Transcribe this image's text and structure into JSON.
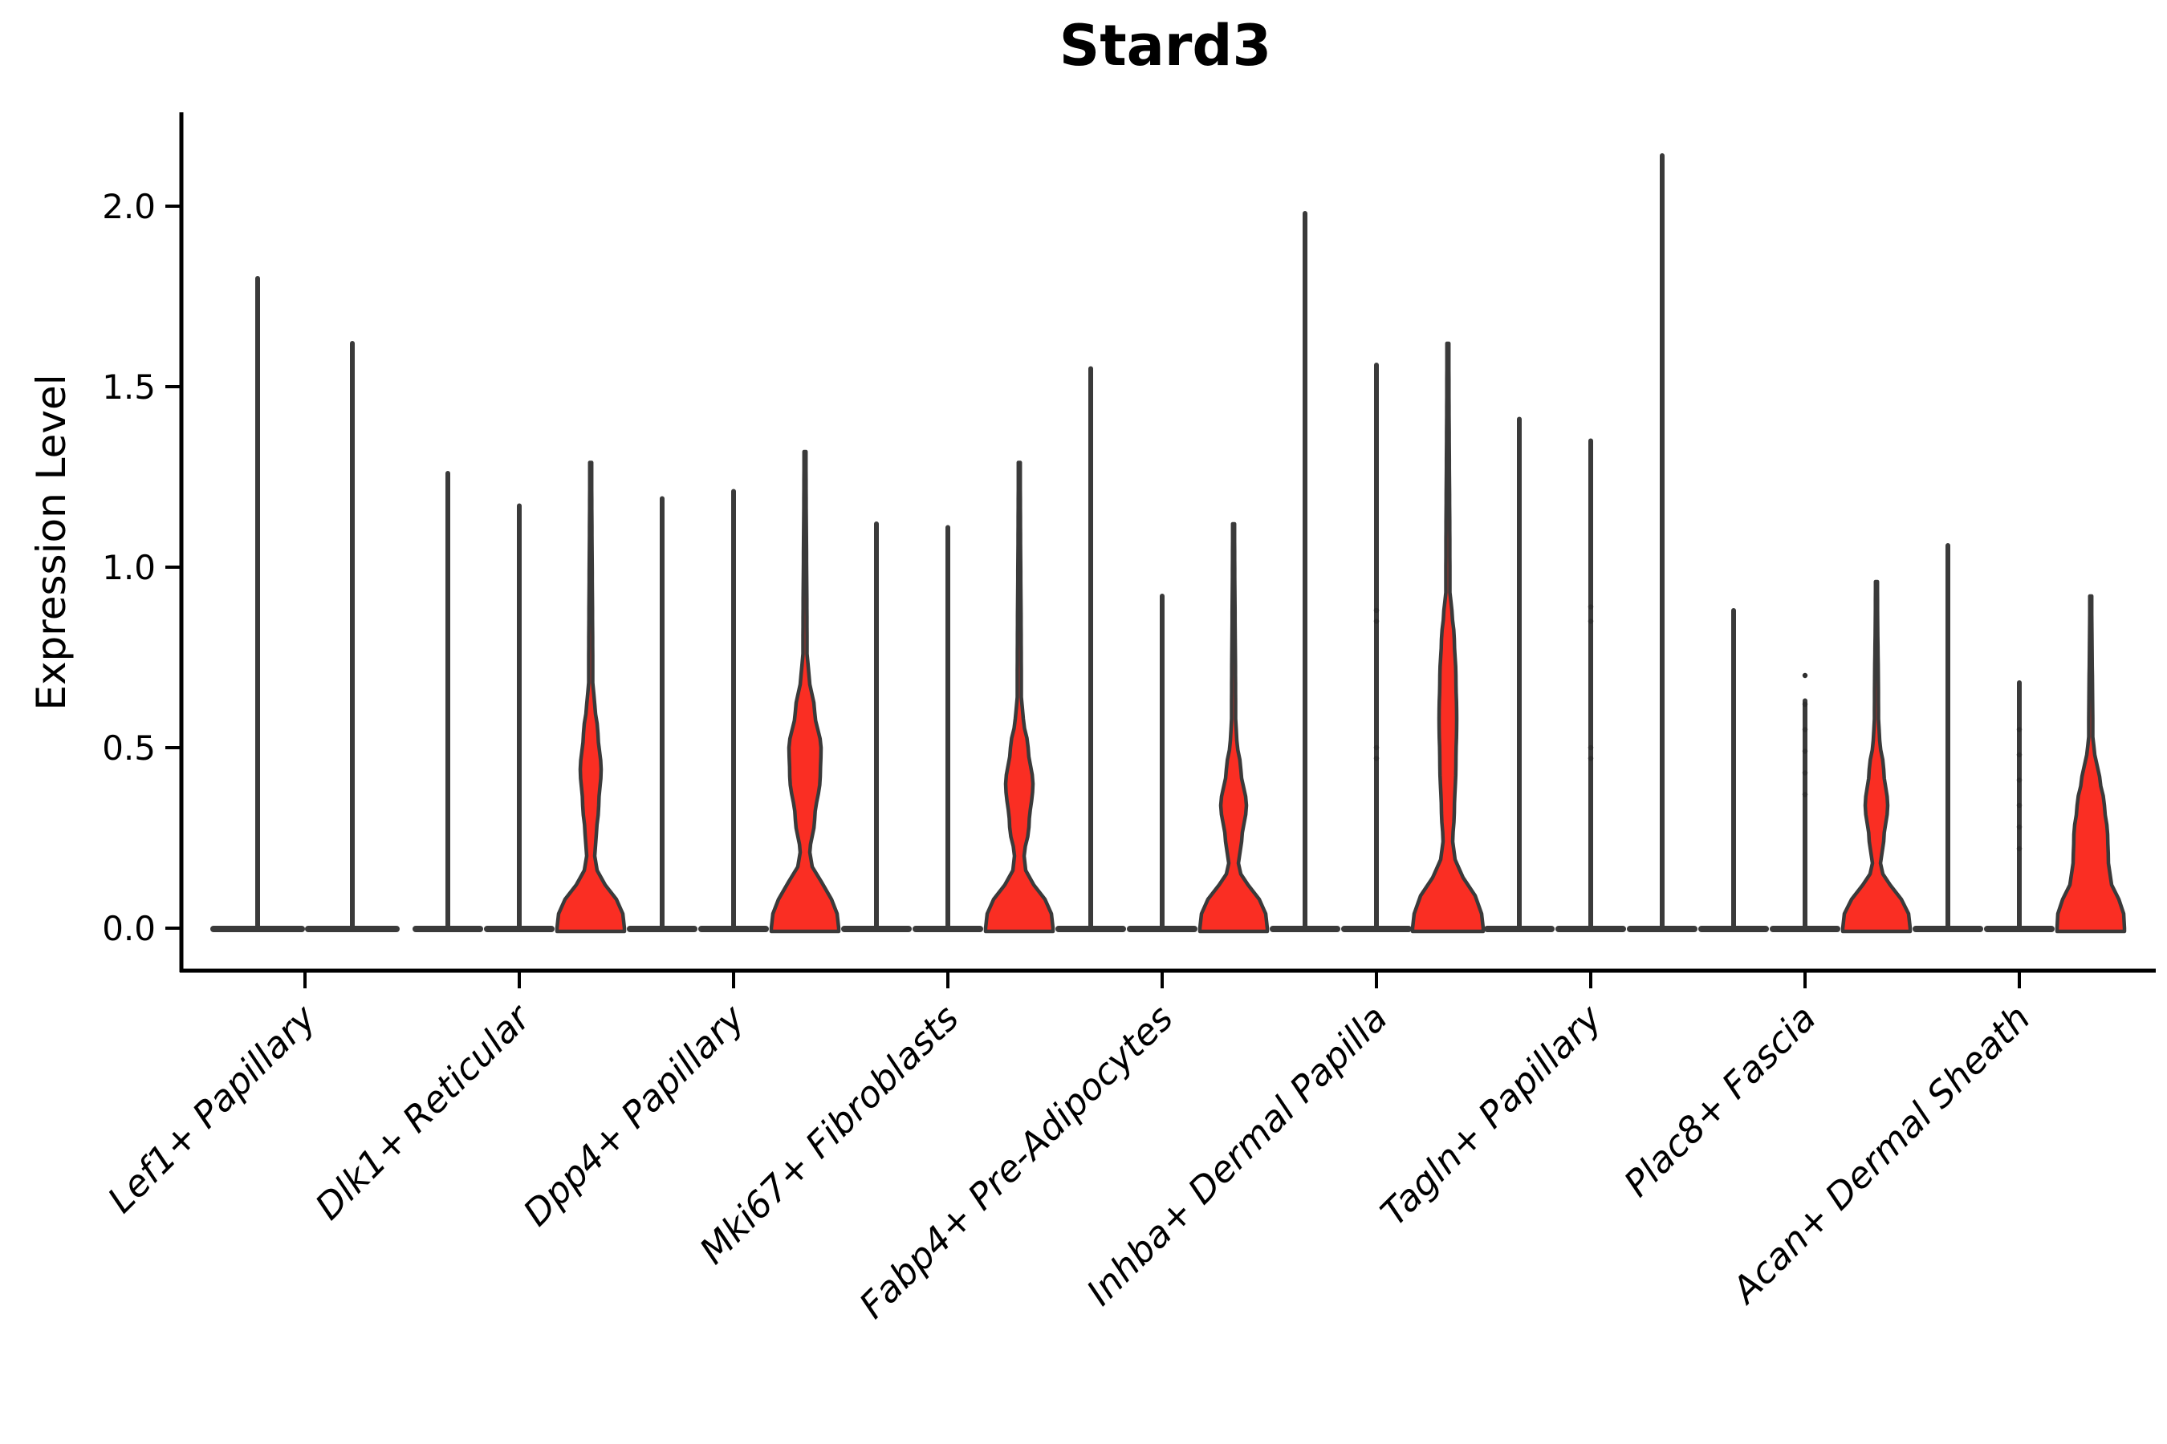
{
  "chart_data": {
    "type": "violin",
    "title": "Stard3",
    "ylabel": "Expression Level",
    "xlabel": "",
    "ylim": [
      -0.12,
      2.25
    ],
    "yticks": [
      "0.0",
      "0.5",
      "1.0",
      "1.5",
      "2.0"
    ],
    "ytick_values": [
      0,
      0.5,
      1.0,
      1.5,
      2.0
    ],
    "grid": false,
    "legend_position": "none",
    "fill_color": "#fa2e23",
    "edge_color": "#3a3a3a",
    "axis_color": "#000000",
    "categories": [
      "Lef1+ Papillary",
      "Dlk1+ Reticular",
      "Dpp4+ Papillary",
      "Mki67+ Fibroblasts",
      "Fabp4+ Pre-Adipocytes",
      "Inhba+ Dermal Papilla",
      "Tagln+ Papillary",
      "Plac8+ Fascia",
      "Acan+ Dermal Sheath"
    ],
    "groups": [
      {
        "category": "Lef1+ Papillary",
        "violins": [
          {
            "max": 1.8,
            "filled": false
          },
          {
            "max": 1.62,
            "filled": false
          }
        ]
      },
      {
        "category": "Dlk1+ Reticular",
        "violins": [
          {
            "max": 1.26,
            "filled": false
          },
          {
            "max": 1.17,
            "filled": false
          },
          {
            "max": 1.29,
            "filled": true,
            "profile": [
              [
                0,
                42
              ],
              [
                0.04,
                40
              ],
              [
                0.08,
                32
              ],
              [
                0.12,
                18
              ],
              [
                0.16,
                8
              ],
              [
                0.2,
                5
              ],
              [
                0.26,
                7
              ],
              [
                0.34,
                10
              ],
              [
                0.44,
                13
              ],
              [
                0.54,
                9
              ],
              [
                0.62,
                5
              ],
              [
                0.68,
                2.5
              ],
              [
                1.29,
                1.2
              ]
            ]
          }
        ]
      },
      {
        "category": "Dpp4+ Papillary",
        "violins": [
          {
            "max": 1.19,
            "filled": false
          },
          {
            "max": 1.21,
            "filled": false
          },
          {
            "max": 1.32,
            "filled": true,
            "profile": [
              [
                0,
                42
              ],
              [
                0.04,
                40
              ],
              [
                0.08,
                33
              ],
              [
                0.13,
                20
              ],
              [
                0.17,
                9
              ],
              [
                0.21,
                6
              ],
              [
                0.3,
                12
              ],
              [
                0.42,
                19
              ],
              [
                0.5,
                20
              ],
              [
                0.6,
                12
              ],
              [
                0.7,
                5
              ],
              [
                0.76,
                2.5
              ],
              [
                1.32,
                1.2
              ]
            ]
          }
        ]
      },
      {
        "category": "Mki67+ Fibroblasts",
        "violins": [
          {
            "max": 1.12,
            "filled": false
          },
          {
            "max": 1.11,
            "filled": false
          },
          {
            "max": 1.29,
            "filled": true,
            "profile": [
              [
                0,
                42
              ],
              [
                0.04,
                40
              ],
              [
                0.08,
                32
              ],
              [
                0.12,
                18
              ],
              [
                0.16,
                8
              ],
              [
                0.2,
                6
              ],
              [
                0.28,
                12
              ],
              [
                0.4,
                17
              ],
              [
                0.5,
                11
              ],
              [
                0.58,
                5
              ],
              [
                0.64,
                2.5
              ],
              [
                1.29,
                1.2
              ]
            ]
          }
        ]
      },
      {
        "category": "Fabp4+ Pre-Adipocytes",
        "violins": [
          {
            "max": 1.55,
            "filled": false
          },
          {
            "max": 0.92,
            "filled": false
          },
          {
            "max": 1.12,
            "filled": true,
            "profile": [
              [
                0,
                42
              ],
              [
                0.04,
                40
              ],
              [
                0.08,
                32
              ],
              [
                0.12,
                18
              ],
              [
                0.15,
                9
              ],
              [
                0.18,
                6
              ],
              [
                0.24,
                10
              ],
              [
                0.34,
                16
              ],
              [
                0.44,
                9
              ],
              [
                0.52,
                4
              ],
              [
                0.58,
                2.5
              ],
              [
                1.12,
                1.2
              ]
            ]
          }
        ]
      },
      {
        "category": "Inhba+ Dermal Papilla",
        "violins": [
          {
            "max": 1.98,
            "filled": false
          },
          {
            "max": 1.56,
            "filled": false,
            "dots": [
              0.47,
              0.5,
              0.85,
              0.88
            ]
          },
          {
            "max": 1.62,
            "filled": true,
            "profile": [
              [
                0,
                44
              ],
              [
                0.04,
                42
              ],
              [
                0.09,
                34
              ],
              [
                0.14,
                19
              ],
              [
                0.19,
                9
              ],
              [
                0.24,
                6
              ],
              [
                0.32,
                8
              ],
              [
                0.45,
                10
              ],
              [
                0.58,
                11
              ],
              [
                0.7,
                10
              ],
              [
                0.8,
                8
              ],
              [
                0.88,
                5
              ],
              [
                0.93,
                2.5
              ],
              [
                1.62,
                1.2
              ]
            ]
          }
        ]
      },
      {
        "category": "Tagln+ Papillary",
        "violins": [
          {
            "max": 1.41,
            "filled": false
          },
          {
            "max": 1.35,
            "filled": false,
            "dots": [
              0.47,
              0.5,
              0.85,
              0.89
            ]
          },
          {
            "max": 2.14,
            "filled": false
          }
        ]
      },
      {
        "category": "Plac8+ Fascia",
        "violins": [
          {
            "max": 0.88,
            "filled": false
          },
          {
            "max": 0.63,
            "filled": false,
            "dots": [
              0.37,
              0.43,
              0.49,
              0.55,
              0.62,
              0.7
            ]
          },
          {
            "max": 0.96,
            "filled": true,
            "profile": [
              [
                0,
                42
              ],
              [
                0.04,
                40
              ],
              [
                0.08,
                31
              ],
              [
                0.12,
                17
              ],
              [
                0.15,
                8
              ],
              [
                0.18,
                5
              ],
              [
                0.24,
                9
              ],
              [
                0.34,
                14
              ],
              [
                0.44,
                9
              ],
              [
                0.52,
                4
              ],
              [
                0.58,
                2.5
              ],
              [
                0.96,
                1.2
              ]
            ]
          }
        ]
      },
      {
        "category": "Acan+ Dermal Sheath",
        "violins": [
          {
            "max": 1.06,
            "filled": false
          },
          {
            "max": 0.68,
            "filled": false,
            "dots": [
              0.22,
              0.28,
              0.34,
              0.41,
              0.48,
              0.55
            ]
          },
          {
            "max": 0.92,
            "filled": true,
            "profile": [
              [
                0,
                42
              ],
              [
                0.04,
                41
              ],
              [
                0.08,
                35
              ],
              [
                0.12,
                26
              ],
              [
                0.18,
                22
              ],
              [
                0.26,
                21
              ],
              [
                0.34,
                17
              ],
              [
                0.42,
                11
              ],
              [
                0.48,
                5
              ],
              [
                0.53,
                2.5
              ],
              [
                0.92,
                1.2
              ]
            ]
          }
        ]
      }
    ]
  }
}
